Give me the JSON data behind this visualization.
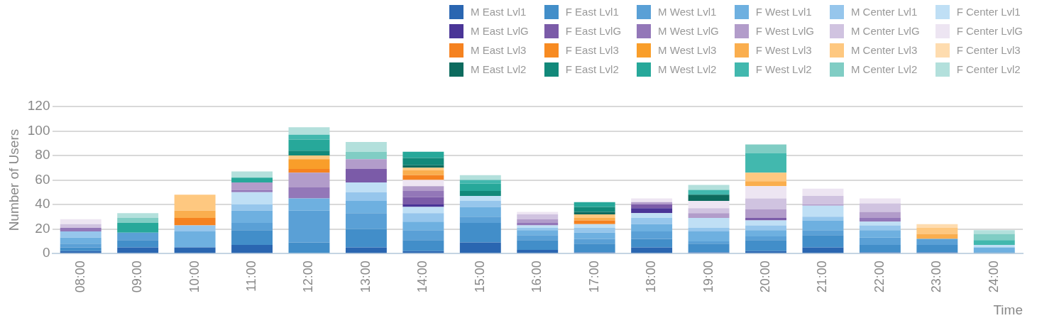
{
  "chart_data": {
    "type": "bar",
    "stacked": true,
    "xlabel": "Time",
    "ylabel": "Number of Users",
    "legend": "top right",
    "grid": "y",
    "categories": [
      "08:00",
      "09:00",
      "10:00",
      "11:00",
      "12:00",
      "13:00",
      "14:00",
      "15:00",
      "16:00",
      "17:00",
      "18:00",
      "19:00",
      "20:00",
      "21:00",
      "22:00",
      "23:00",
      "24:00"
    ],
    "ylim": [
      0,
      120
    ],
    "yticks": [
      0,
      20,
      40,
      60,
      80,
      100,
      120
    ],
    "series": [
      {
        "name": "M East Lvl1",
        "color": "#2a66b1",
        "values": [
          2,
          5,
          5,
          7,
          0,
          5,
          2,
          9,
          3,
          1,
          5,
          1,
          2,
          5,
          1,
          1,
          0
        ]
      },
      {
        "name": "F East Lvl1",
        "color": "#428ec9",
        "values": [
          3,
          6,
          0,
          12,
          9,
          15,
          9,
          16,
          8,
          7,
          7,
          7,
          9,
          10,
          6,
          6,
          1
        ]
      },
      {
        "name": "M West Lvl1",
        "color": "#5aa0d6",
        "values": [
          3,
          6,
          0,
          6,
          26,
          13,
          8,
          5,
          4,
          4,
          6,
          2,
          3,
          4,
          6,
          5,
          0
        ]
      },
      {
        "name": "F West Lvl1",
        "color": "#6eb0e0",
        "values": [
          5,
          0,
          13,
          10,
          10,
          10,
          7,
          8,
          4,
          5,
          6,
          8,
          5,
          8,
          6,
          0,
          4
        ]
      },
      {
        "name": "M Center Lvl1",
        "color": "#96c6ec",
        "values": [
          5,
          0,
          5,
          5,
          0,
          7,
          7,
          5,
          2,
          4,
          5,
          3,
          4,
          3,
          4,
          0,
          0
        ]
      },
      {
        "name": "F Center Lvl1",
        "color": "#bfdff5",
        "values": [
          0,
          0,
          0,
          10,
          0,
          8,
          5,
          4,
          2,
          3,
          4,
          8,
          4,
          9,
          3,
          0,
          2
        ]
      },
      {
        "name": "M East LvlG",
        "color": "#4a3597",
        "values": [
          0,
          0,
          0,
          0,
          0,
          0,
          2,
          0,
          0,
          0,
          4,
          0,
          0,
          0,
          0,
          0,
          0
        ]
      },
      {
        "name": "F East LvlG",
        "color": "#7b5ba8",
        "values": [
          0,
          0,
          0,
          0,
          0,
          11,
          6,
          0,
          0,
          0,
          3,
          0,
          2,
          0,
          0,
          0,
          0
        ]
      },
      {
        "name": "M West LvlG",
        "color": "#9377b8",
        "values": [
          3,
          0,
          0,
          2,
          9,
          0,
          5,
          0,
          2,
          0,
          0,
          0,
          0,
          0,
          3,
          0,
          0
        ]
      },
      {
        "name": "F West LvlG",
        "color": "#b29cca",
        "values": [
          0,
          0,
          0,
          6,
          12,
          8,
          4,
          0,
          3,
          0,
          2,
          4,
          7,
          1,
          5,
          0,
          0
        ]
      },
      {
        "name": "M Center LvlG",
        "color": "#d0c3e0",
        "values": [
          3,
          0,
          0,
          0,
          0,
          0,
          0,
          0,
          4,
          0,
          0,
          4,
          9,
          7,
          7,
          0,
          0
        ]
      },
      {
        "name": "F Center LvlG",
        "color": "#ede5f2",
        "values": [
          4,
          0,
          0,
          0,
          0,
          0,
          5,
          0,
          2,
          0,
          3,
          6,
          10,
          6,
          4,
          0,
          0
        ]
      },
      {
        "name": "M East Lvl3",
        "color": "#f58220",
        "values": [
          0,
          0,
          6,
          0,
          3,
          0,
          4,
          0,
          0,
          3,
          0,
          0,
          0,
          0,
          0,
          0,
          0
        ]
      },
      {
        "name": "F East Lvl3",
        "color": "#f78b22",
        "values": [
          0,
          0,
          0,
          0,
          0,
          0,
          0,
          0,
          0,
          0,
          0,
          0,
          0,
          0,
          0,
          0,
          0
        ]
      },
      {
        "name": "M West Lvl3",
        "color": "#f99e2a",
        "values": [
          0,
          0,
          0,
          0,
          8,
          0,
          0,
          0,
          0,
          0,
          0,
          0,
          0,
          0,
          0,
          0,
          0
        ]
      },
      {
        "name": "F West Lvl3",
        "color": "#faae4e",
        "values": [
          0,
          0,
          6,
          0,
          0,
          0,
          4,
          0,
          0,
          2,
          0,
          0,
          4,
          0,
          0,
          4,
          0
        ]
      },
      {
        "name": "M Center Lvl3",
        "color": "#fec880",
        "values": [
          0,
          0,
          13,
          0,
          3,
          0,
          2,
          0,
          0,
          3,
          0,
          0,
          7,
          0,
          0,
          5,
          0
        ]
      },
      {
        "name": "F Center Lvl3",
        "color": "#fedcaf",
        "values": [
          0,
          0,
          0,
          0,
          0,
          0,
          0,
          0,
          0,
          0,
          0,
          0,
          0,
          0,
          0,
          3,
          0
        ]
      },
      {
        "name": "M East Lvl2",
        "color": "#0d6b5e",
        "values": [
          0,
          0,
          0,
          0,
          0,
          0,
          2,
          0,
          0,
          2,
          0,
          5,
          0,
          0,
          0,
          0,
          0
        ]
      },
      {
        "name": "F East Lvl2",
        "color": "#12897a",
        "values": [
          0,
          0,
          0,
          0,
          4,
          0,
          6,
          4,
          0,
          4,
          0,
          0,
          0,
          0,
          0,
          0,
          0
        ]
      },
      {
        "name": "M West Lvl2",
        "color": "#27a89a",
        "values": [
          0,
          8,
          0,
          4,
          9,
          0,
          5,
          6,
          0,
          4,
          0,
          0,
          0,
          0,
          0,
          0,
          0
        ]
      },
      {
        "name": "F West Lvl2",
        "color": "#42b8ae",
        "values": [
          0,
          0,
          0,
          0,
          4,
          0,
          0,
          3,
          0,
          0,
          0,
          4,
          16,
          0,
          0,
          0,
          4
        ]
      },
      {
        "name": "M Center Lvl2",
        "color": "#80cdc4",
        "values": [
          0,
          4,
          0,
          0,
          0,
          6,
          0,
          0,
          0,
          0,
          0,
          0,
          7,
          0,
          0,
          0,
          5
        ]
      },
      {
        "name": "F Center Lvl2",
        "color": "#b3e0dc",
        "values": [
          0,
          4,
          0,
          5,
          6,
          8,
          0,
          4,
          0,
          0,
          0,
          4,
          0,
          0,
          0,
          0,
          3
        ]
      }
    ]
  }
}
